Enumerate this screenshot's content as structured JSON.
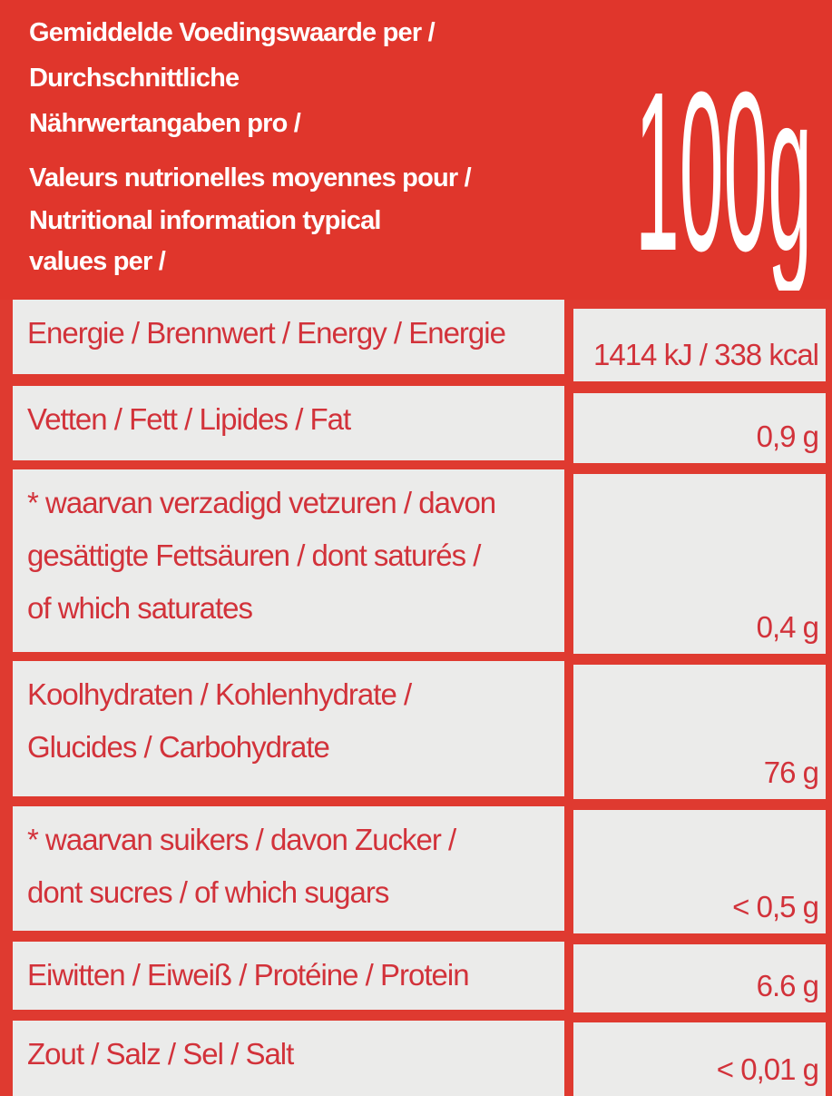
{
  "header": {
    "lines": [
      "Gemiddelde Voedingswaarde per /",
      "Durchschnittliche",
      "Nährwertangaben pro /",
      "Valeurs nutrionelles moyennes pour /",
      "Nutritional information typical",
      "values per /"
    ],
    "per_amount": "100g"
  },
  "rows": [
    {
      "label": [
        "Energie / Brennwert / Energy / Energie"
      ],
      "value": "1414 kJ / 338 kcal"
    },
    {
      "label": [
        "Vetten / Fett / Lipides / Fat"
      ],
      "value": "0,9 g"
    },
    {
      "label": [
        "* waarvan verzadigd vetzuren / davon",
        "gesättigte Fettsäuren / dont saturés /",
        "of which saturates"
      ],
      "value": "0,4 g"
    },
    {
      "label": [
        "Koolhydraten / Kohlenhydrate /",
        "Glucides / Carbohydrate"
      ],
      "value": "76 g"
    },
    {
      "label": [
        "* waarvan suikers / davon Zucker /",
        "dont sucres / of which sugars"
      ],
      "value": "< 0,5 g"
    },
    {
      "label": [
        "Eiwitten / Eiweiß / Protéine / Protein"
      ],
      "value": "6.6 g"
    },
    {
      "label": [
        "Zout / Salz / Sel / Salt"
      ],
      "value": "< 0,01 g"
    }
  ],
  "colors": {
    "brand_red": "#e0362c",
    "text_red": "#d2323a",
    "cell_bg": "#ebebea"
  }
}
